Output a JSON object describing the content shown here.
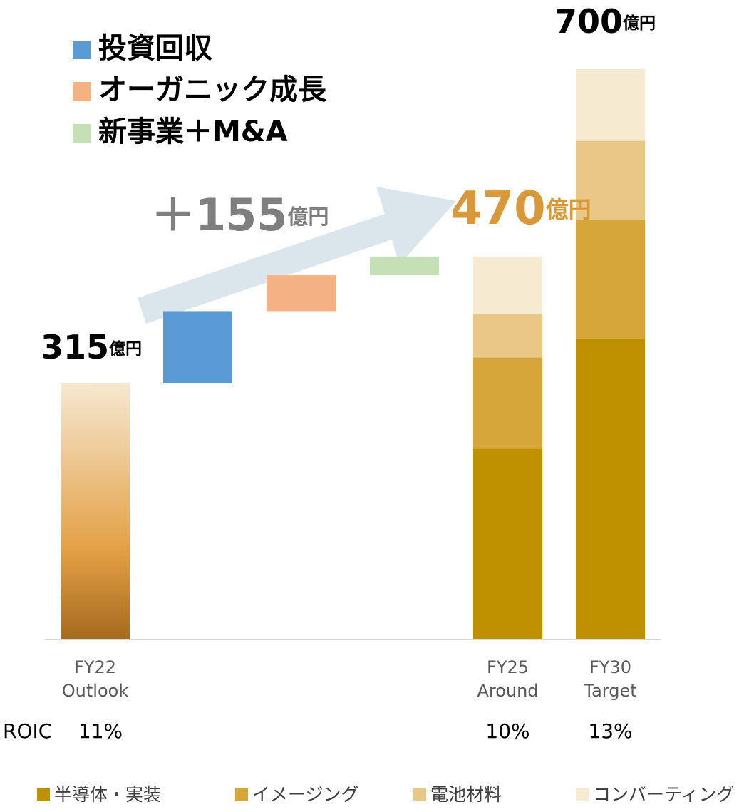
{
  "chart_data": {
    "type": "waterfall",
    "unit": "億円",
    "categories": [
      [
        "FY22",
        "Outlook"
      ],
      [
        "FY25",
        "Around"
      ],
      [
        "FY30",
        "Target"
      ]
    ],
    "totals": [
      315,
      470,
      700
    ],
    "total_colors": [
      "#000000",
      "#d9993a",
      "#000000"
    ],
    "base_colors": [
      "#f6e8d2",
      "#e3a045",
      "#a66a1e"
    ],
    "steps": {
      "names": [
        "投資回収",
        "オーガニック成長",
        "新事業＋M&A"
      ],
      "colors": [
        "#5b9bd5",
        "#f4b183",
        "#c5e0b4"
      ],
      "values": [
        88,
        44,
        23
      ]
    },
    "increase": {
      "value": 155,
      "label": "＋155",
      "color": "#7f7f7f"
    },
    "series": [
      {
        "name": "半導体・実装",
        "color": "#bf9000",
        "values": [
          null,
          234,
          369
        ]
      },
      {
        "name": "イメージング",
        "color": "#d6a63a",
        "values": [
          null,
          112,
          146
        ]
      },
      {
        "name": "電池材料",
        "color": "#e8c787",
        "values": [
          null,
          54,
          97
        ]
      },
      {
        "name": "コンバーティング",
        "color": "#f6ead0",
        "values": [
          null,
          70,
          88
        ]
      }
    ],
    "roic": {
      "label": "ROIC",
      "values": [
        11,
        10,
        13
      ],
      "value_labels": [
        "11%",
        "10%",
        "13%"
      ]
    }
  }
}
